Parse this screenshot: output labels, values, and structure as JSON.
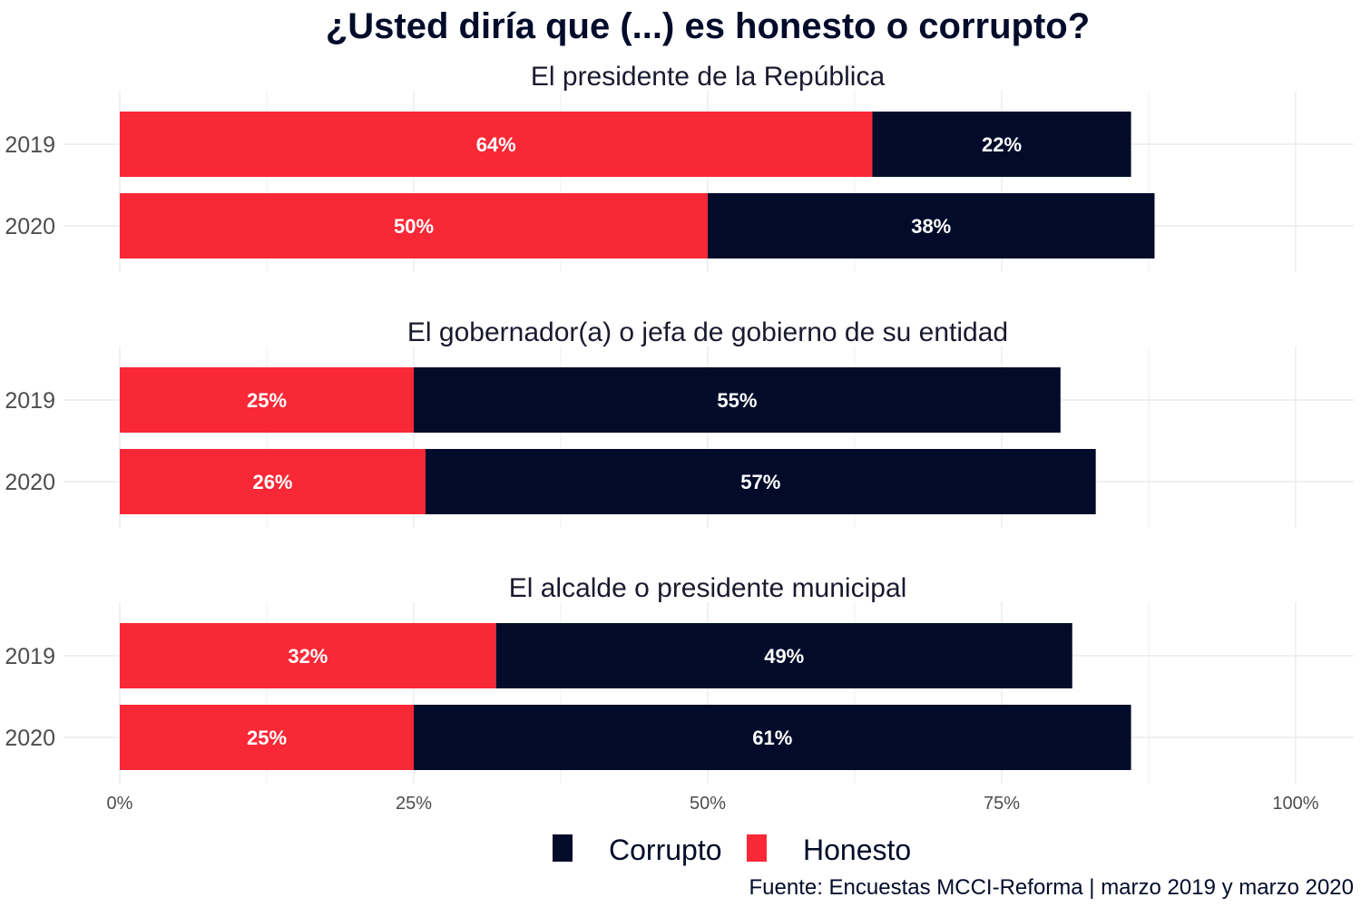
{
  "chart_data": {
    "type": "bar",
    "orientation": "horizontal",
    "stacked": true,
    "title": "¿Usted diría que (...) es honesto o corrupto?",
    "caption": "Fuente: Encuestas MCCI-Reforma | marzo 2019 y marzo 2020",
    "xlim": [
      0,
      100
    ],
    "x_ticks": [
      "0%",
      "25%",
      "50%",
      "75%",
      "100%"
    ],
    "grid": true,
    "legend_position": "bottom",
    "legend": [
      {
        "name": "Corrupto",
        "color": "#020C2A"
      },
      {
        "name": "Honesto",
        "color": "#F92836"
      }
    ],
    "panels": [
      {
        "title": "El presidente de la República",
        "categories": [
          "2019",
          "2020"
        ],
        "series": [
          {
            "name": "Honesto",
            "values": [
              64,
              50
            ],
            "labels": [
              "64%",
              "50%"
            ]
          },
          {
            "name": "Corrupto",
            "values": [
              22,
              38
            ],
            "labels": [
              "22%",
              "38%"
            ]
          }
        ]
      },
      {
        "title": "El gobernador(a) o jefa de gobierno de su entidad",
        "categories": [
          "2019",
          "2020"
        ],
        "series": [
          {
            "name": "Honesto",
            "values": [
              25,
              26
            ],
            "labels": [
              "25%",
              "26%"
            ]
          },
          {
            "name": "Corrupto",
            "values": [
              55,
              57
            ],
            "labels": [
              "55%",
              "57%"
            ]
          }
        ]
      },
      {
        "title": "El alcalde o presidente municipal",
        "categories": [
          "2019",
          "2020"
        ],
        "series": [
          {
            "name": "Honesto",
            "values": [
              32,
              25
            ],
            "labels": [
              "32%",
              "25%"
            ]
          },
          {
            "name": "Corrupto",
            "values": [
              49,
              61
            ],
            "labels": [
              "49%",
              "61%"
            ]
          }
        ]
      }
    ]
  }
}
